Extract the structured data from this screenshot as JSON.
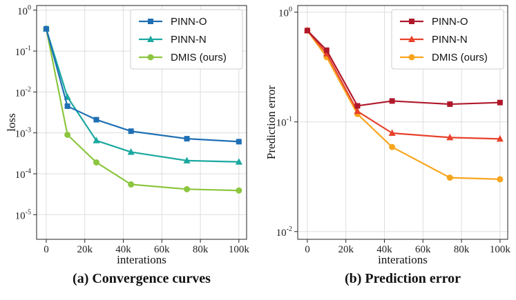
{
  "chart_data": [
    {
      "type": "line",
      "yscale": "log",
      "caption": "(a) Convergence curves",
      "xlabel": "interations",
      "ylabel": "loss",
      "xlim": [
        -5000,
        104000
      ],
      "ylim": [
        2.5e-06,
        1.3
      ],
      "xticks": [
        0,
        20000,
        40000,
        60000,
        80000,
        100000
      ],
      "xtick_labels": [
        "0",
        "20k",
        "40k",
        "60k",
        "80k",
        "100k"
      ],
      "yticks": [
        1,
        0.1,
        0.01,
        0.001,
        0.0001,
        1e-05
      ],
      "ytick_labels": [
        {
          "base": "10",
          "exp": "0"
        },
        {
          "base": "10",
          "exp": "-1"
        },
        {
          "base": "10",
          "exp": "-2"
        },
        {
          "base": "10",
          "exp": "-3"
        },
        {
          "base": "10",
          "exp": "-4"
        },
        {
          "base": "10",
          "exp": "-5"
        }
      ],
      "grid": true,
      "legend_position": "top-right",
      "series": [
        {
          "name": "PINN-O",
          "color": "#1f6fb4",
          "marker": "square",
          "x": [
            0,
            11000,
            26000,
            44000,
            73000,
            100000
          ],
          "y": [
            0.35,
            0.0045,
            0.0021,
            0.0011,
            0.00072,
            0.00061
          ]
        },
        {
          "name": "PINN-N",
          "color": "#1aa8a0",
          "marker": "triangle",
          "x": [
            0,
            11000,
            26000,
            44000,
            73000,
            100000
          ],
          "y": [
            0.35,
            0.0075,
            0.00065,
            0.00034,
            0.00021,
            0.000195
          ]
        },
        {
          "name": "DMIS (ours)",
          "color": "#8cc63f",
          "marker": "circle",
          "x": [
            0,
            11000,
            26000,
            44000,
            73000,
            100000
          ],
          "y": [
            0.35,
            0.0009,
            0.00019,
            5.5e-05,
            4.2e-05,
            3.9e-05
          ]
        }
      ]
    },
    {
      "type": "line",
      "yscale": "log",
      "caption": "(b) Prediction error",
      "xlabel": "interations",
      "ylabel": "Prediction error",
      "xlim": [
        -5000,
        104000
      ],
      "ylim": [
        0.0085,
        1.15
      ],
      "xticks": [
        0,
        20000,
        40000,
        60000,
        80000,
        100000
      ],
      "xtick_labels": [
        "0",
        "20k",
        "40k",
        "60k",
        "80k",
        "100k"
      ],
      "yticks": [
        1,
        0.1,
        0.01
      ],
      "ytick_labels": [
        {
          "base": "10",
          "exp": "0"
        },
        {
          "base": "10",
          "exp": "-1"
        },
        {
          "base": "10",
          "exp": "-2"
        }
      ],
      "grid": true,
      "legend_position": "top-right",
      "series": [
        {
          "name": "PINN-O",
          "color": "#b0182b",
          "marker": "square",
          "x": [
            0,
            10000,
            26000,
            44000,
            74000,
            100000
          ],
          "y": [
            0.68,
            0.45,
            0.14,
            0.155,
            0.145,
            0.15
          ]
        },
        {
          "name": "PINN-N",
          "color": "#e8412b",
          "marker": "triangle",
          "x": [
            0,
            10000,
            26000,
            44000,
            74000,
            100000
          ],
          "y": [
            0.68,
            0.42,
            0.125,
            0.079,
            0.072,
            0.07
          ]
        },
        {
          "name": "DMIS (ours)",
          "color": "#f7a51e",
          "marker": "circle",
          "x": [
            0,
            10000,
            26000,
            44000,
            74000,
            100000
          ],
          "y": [
            0.68,
            0.39,
            0.118,
            0.059,
            0.031,
            0.03
          ]
        }
      ]
    }
  ]
}
